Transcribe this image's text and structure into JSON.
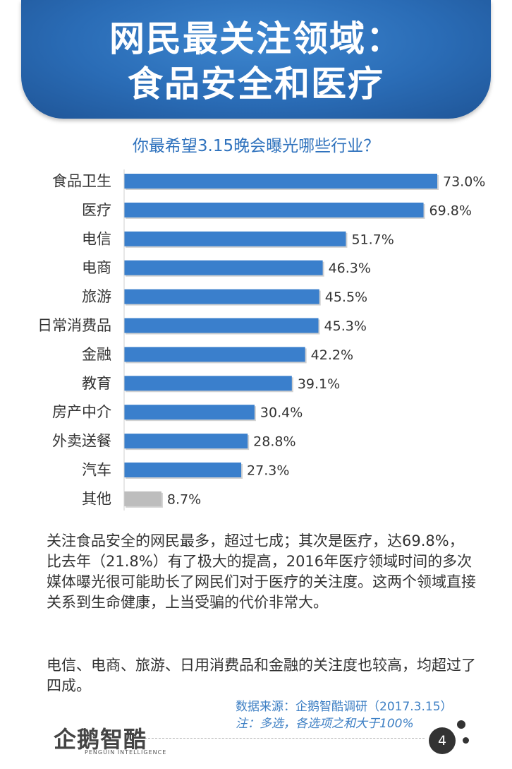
{
  "header": {
    "title_line1": "网民最关注领域：",
    "title_line2": "食品安全和医疗"
  },
  "chart_data": {
    "type": "bar",
    "orientation": "horizontal",
    "title": "你最希望3.15晚会曝光哪些行业？",
    "categories": [
      "食品卫生",
      "医疗",
      "电信",
      "电商",
      "旅游",
      "日常消费品",
      "金融",
      "教育",
      "房产中介",
      "外卖送餐",
      "汽车",
      "其他"
    ],
    "values": [
      73.0,
      69.8,
      51.7,
      46.3,
      45.5,
      45.3,
      42.2,
      39.1,
      30.4,
      28.8,
      27.3,
      8.7
    ],
    "value_labels": [
      "73.0%",
      "69.8%",
      "51.7%",
      "46.3%",
      "45.5%",
      "45.3%",
      "42.2%",
      "39.1%",
      "30.4%",
      "28.8%",
      "27.3%",
      "8.7%"
    ],
    "xlim": [
      0,
      73.0
    ],
    "grid": false,
    "colors": {
      "bar": "#3a7fcc",
      "bar_other": "#bdbdbd"
    }
  },
  "description": {
    "paragraph1": "关注食品安全的网民最多，超过七成；其次是医疗，达69.8%，比去年（21.8%）有了极大的提高，2016年医疗领域时间的多次媒体曝光很可能助长了网民们对于医疗的关注度。这两个领域直接关系到生命健康，上当受骗的代价非常大。",
    "paragraph2": "电信、电商、旅游、日用消费品和金融的关注度也较高，均超过了四成。"
  },
  "footer": {
    "source": "数据来源：企鹅智酷调研（2017.3.15）",
    "note": "注：多选，各选项之和大于100%",
    "logo": "企鹅智酷",
    "logo_sub": "PENGUIN INTELLIGENCE",
    "page_number": "4"
  }
}
